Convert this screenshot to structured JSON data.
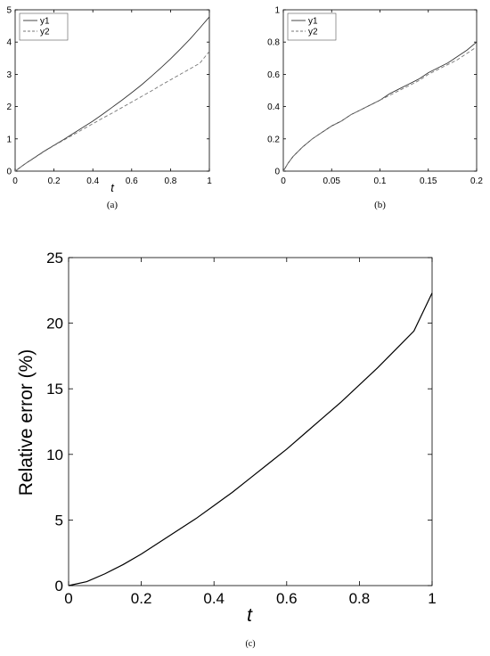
{
  "chart_data": [
    {
      "type": "line",
      "caption": "(a)",
      "xlabel": "t",
      "ylabel": "",
      "xlim": [
        0,
        1
      ],
      "ylim": [
        0,
        5
      ],
      "xticks": [
        "0",
        "0.2",
        "0.4",
        "0.6",
        "0.8",
        "1"
      ],
      "yticks": [
        "0",
        "1",
        "2",
        "3",
        "4",
        "5"
      ],
      "grid": false,
      "legend_position": "top-left",
      "x": [
        0,
        0.05,
        0.1,
        0.15,
        0.2,
        0.25,
        0.3,
        0.35,
        0.4,
        0.45,
        0.5,
        0.55,
        0.6,
        0.65,
        0.7,
        0.75,
        0.8,
        0.85,
        0.9,
        0.95,
        1
      ],
      "series": [
        {
          "name": "y1",
          "style": "solid",
          "values": [
            0,
            0.22,
            0.42,
            0.62,
            0.8,
            0.98,
            1.17,
            1.36,
            1.55,
            1.76,
            1.98,
            2.2,
            2.43,
            2.67,
            2.93,
            3.2,
            3.48,
            3.78,
            4.09,
            4.43,
            4.78
          ]
        },
        {
          "name": "y2",
          "style": "dashed",
          "values": [
            0,
            0.22,
            0.41,
            0.61,
            0.79,
            0.96,
            1.13,
            1.3,
            1.47,
            1.64,
            1.8,
            1.97,
            2.14,
            2.31,
            2.48,
            2.66,
            2.83,
            3.0,
            3.17,
            3.34,
            3.71
          ]
        }
      ]
    },
    {
      "type": "line",
      "caption": "(b)",
      "xlabel": "",
      "ylabel": "",
      "xlim": [
        0,
        0.2
      ],
      "ylim": [
        0,
        1
      ],
      "xticks": [
        "0",
        "0.05",
        "0.1",
        "0.15",
        "0.2"
      ],
      "yticks": [
        "0",
        "0.2",
        "0.4",
        "0.6",
        "0.8",
        "1"
      ],
      "grid": false,
      "legend_position": "top-left",
      "x": [
        0,
        0.005,
        0.01,
        0.02,
        0.03,
        0.04,
        0.05,
        0.06,
        0.07,
        0.08,
        0.09,
        0.1,
        0.11,
        0.12,
        0.13,
        0.14,
        0.15,
        0.16,
        0.17,
        0.18,
        0.19,
        0.2
      ],
      "series": [
        {
          "name": "y1",
          "style": "solid",
          "values": [
            0,
            0.05,
            0.09,
            0.15,
            0.2,
            0.24,
            0.28,
            0.31,
            0.35,
            0.38,
            0.41,
            0.44,
            0.48,
            0.51,
            0.54,
            0.57,
            0.61,
            0.64,
            0.67,
            0.71,
            0.75,
            0.8
          ]
        },
        {
          "name": "y2",
          "style": "dashed",
          "values": [
            0,
            0.05,
            0.09,
            0.15,
            0.2,
            0.24,
            0.28,
            0.31,
            0.35,
            0.38,
            0.41,
            0.44,
            0.47,
            0.5,
            0.53,
            0.56,
            0.6,
            0.63,
            0.66,
            0.69,
            0.73,
            0.77
          ]
        }
      ]
    },
    {
      "type": "line",
      "caption": "(c)",
      "xlabel": "t",
      "ylabel": "Relative error (%)",
      "xlim": [
        0,
        1
      ],
      "ylim": [
        0,
        25
      ],
      "xticks": [
        "0",
        "0.2",
        "0.4",
        "0.6",
        "0.8",
        "1"
      ],
      "yticks": [
        "0",
        "5",
        "10",
        "15",
        "20",
        "25"
      ],
      "grid": false,
      "legend_position": "none",
      "x": [
        0,
        0.05,
        0.1,
        0.15,
        0.2,
        0.25,
        0.3,
        0.35,
        0.4,
        0.45,
        0.5,
        0.55,
        0.6,
        0.65,
        0.7,
        0.75,
        0.8,
        0.85,
        0.9,
        0.95,
        1
      ],
      "series": [
        {
          "style": "solid",
          "values": [
            0,
            0.3,
            0.9,
            1.6,
            2.4,
            3.3,
            4.2,
            5.1,
            6.1,
            7.1,
            8.2,
            9.3,
            10.4,
            11.6,
            12.8,
            14.0,
            15.3,
            16.6,
            18.0,
            19.4,
            22.3
          ]
        }
      ]
    }
  ]
}
